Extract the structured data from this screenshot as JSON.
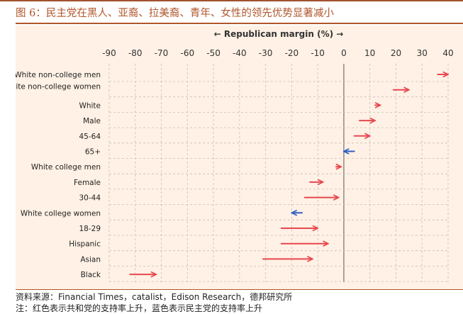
{
  "figure_title": "图 6：民主党在黑人、亚裔、拉美裔、青年、女性的领先优势显著减小",
  "source": "资料来源：Financial Times，catalist，Edison Research，德邦研究所",
  "note": "注：红色表示共和党的支持率上升，蓝色表示民主党的支持率上升",
  "colors": {
    "republican_gain": "#e8474e",
    "democrat_gain": "#2f5fc4",
    "panel_bg": "#fff1e5",
    "accent": "#b0552a"
  },
  "chart_data": {
    "type": "arrow",
    "xlabel": "← Republican margin (%) →",
    "xlim": [
      -90,
      40
    ],
    "x_ticks": [
      -90,
      -80,
      -70,
      -60,
      -50,
      -40,
      -30,
      -20,
      -10,
      0,
      10,
      20,
      30,
      40
    ],
    "grid": true,
    "rows": [
      {
        "label": "White non-college men",
        "from": 36,
        "to": 40,
        "direction": "republican"
      },
      {
        "label": "White non-college women",
        "from": 19,
        "to": 25,
        "direction": "republican"
      },
      {
        "label": "White",
        "from": 12,
        "to": 14,
        "direction": "republican"
      },
      {
        "label": "Male",
        "from": 6,
        "to": 12,
        "direction": "republican"
      },
      {
        "label": "45-64",
        "from": 4,
        "to": 10,
        "direction": "republican"
      },
      {
        "label": "65+",
        "from": 4,
        "to": 0,
        "direction": "democrat"
      },
      {
        "label": "White college men",
        "from": -3,
        "to": -1,
        "direction": "republican"
      },
      {
        "label": "Female",
        "from": -13,
        "to": -8,
        "direction": "republican"
      },
      {
        "label": "30-44",
        "from": -15,
        "to": -2,
        "direction": "republican"
      },
      {
        "label": "White college women",
        "from": -16,
        "to": -20,
        "direction": "democrat"
      },
      {
        "label": "18-29",
        "from": -24,
        "to": -10,
        "direction": "republican"
      },
      {
        "label": "Hispanic",
        "from": -24,
        "to": -6,
        "direction": "republican"
      },
      {
        "label": "Asian",
        "from": -31,
        "to": -12,
        "direction": "republican"
      },
      {
        "label": "Black",
        "from": -82,
        "to": -72,
        "direction": "republican"
      }
    ]
  }
}
